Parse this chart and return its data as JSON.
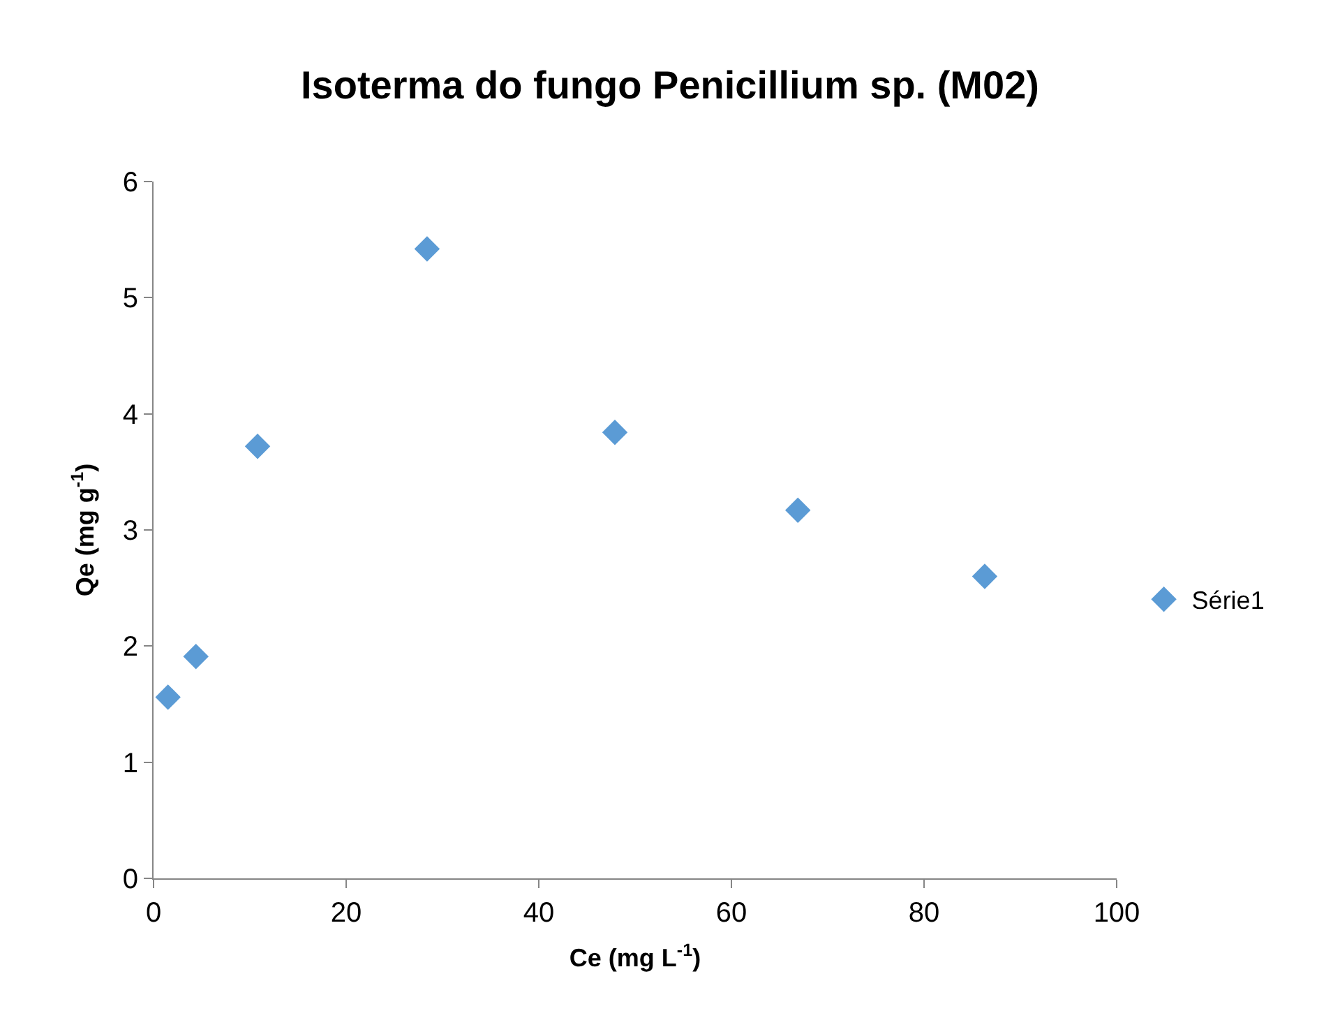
{
  "chart_data": {
    "type": "scatter",
    "title": "Isoterma do fungo Penicillium sp. (M02)",
    "xlabel": "Ce (mg L$^{-1}$)",
    "ylabel": "Qe (mg g$^{-1}$)",
    "series": [
      {
        "name": "Série1",
        "color": "#5b9bd5",
        "x": [
          1.5,
          4.4,
          10.8,
          28.4,
          47.9,
          66.9,
          86.3
        ],
        "values": [
          1.56,
          1.91,
          3.72,
          5.42,
          3.84,
          3.17,
          2.6
        ]
      }
    ],
    "xlim": [
      0,
      100
    ],
    "xticks": [
      0,
      20,
      40,
      60,
      80,
      100
    ],
    "ylim": [
      0,
      6
    ],
    "yticks": [
      0,
      1,
      2,
      3,
      4,
      5,
      6
    ],
    "legend": "right",
    "marker": "diamond"
  }
}
